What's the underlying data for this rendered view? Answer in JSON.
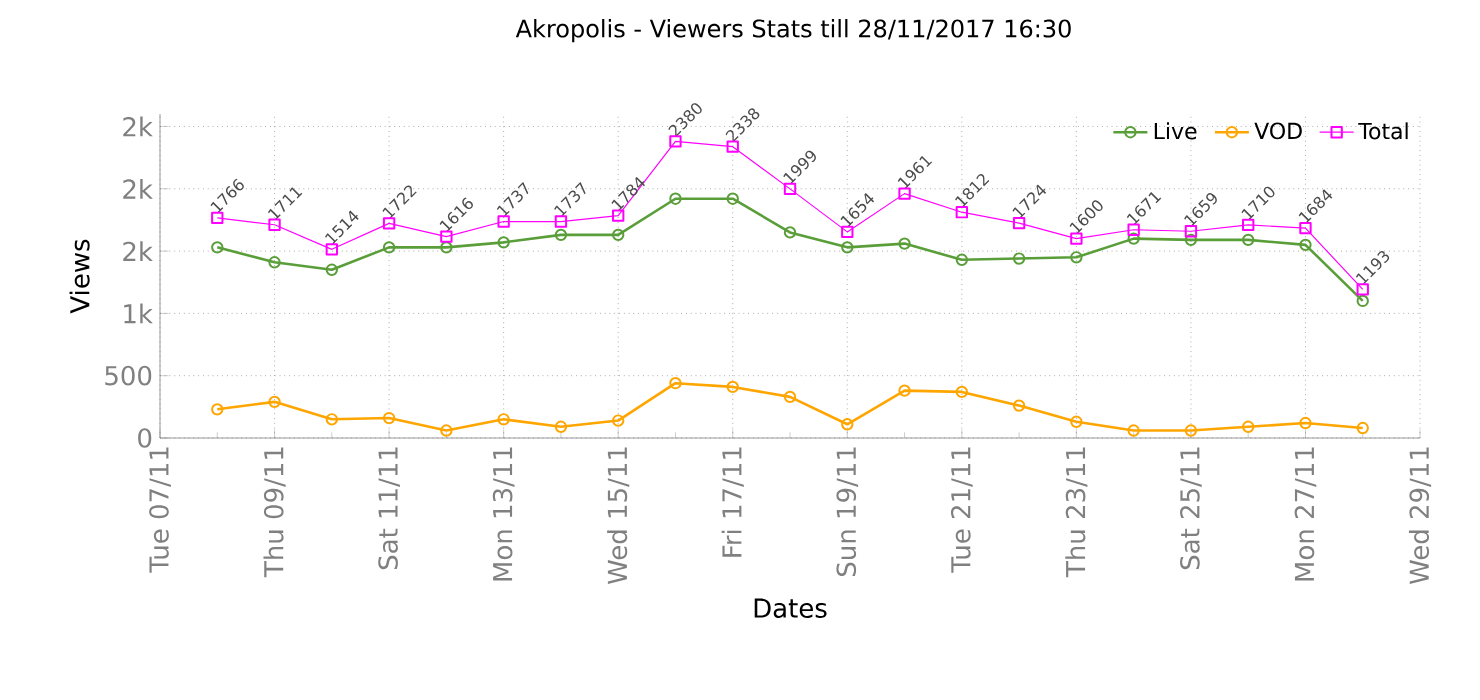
{
  "chart_data": {
    "type": "line",
    "title": "Akropolis - Viewers Stats till 28/11/2017 16:30",
    "xlabel": "Dates",
    "ylabel": "Views",
    "x": [
      "2017-11-08",
      "2017-11-09",
      "2017-11-10",
      "2017-11-11",
      "2017-11-12",
      "2017-11-13",
      "2017-11-14",
      "2017-11-15",
      "2017-11-16",
      "2017-11-17",
      "2017-11-18",
      "2017-11-19",
      "2017-11-20",
      "2017-11-21",
      "2017-11-22",
      "2017-11-23",
      "2017-11-24",
      "2017-11-25",
      "2017-11-26",
      "2017-11-27",
      "2017-11-28"
    ],
    "series": [
      {
        "name": "Live",
        "color": "#5a9e3a",
        "marker": "circle",
        "values": [
          1530,
          1410,
          1350,
          1530,
          1530,
          1570,
          1630,
          1630,
          1920,
          1920,
          1650,
          1530,
          1560,
          1430,
          1440,
          1450,
          1600,
          1590,
          1590,
          1550,
          1100
        ]
      },
      {
        "name": "VOD",
        "color": "#ffa500",
        "marker": "circle",
        "values": [
          230,
          290,
          150,
          160,
          60,
          150,
          90,
          140,
          440,
          410,
          330,
          110,
          380,
          370,
          260,
          130,
          60,
          60,
          90,
          120,
          80
        ]
      },
      {
        "name": "Total",
        "color": "#ff00ff",
        "marker": "square",
        "values": [
          1766,
          1711,
          1514,
          1722,
          1616,
          1737,
          1737,
          1784,
          2380,
          2338,
          1999,
          1654,
          1961,
          1812,
          1724,
          1600,
          1671,
          1659,
          1710,
          1684,
          1193
        ],
        "value_labels": [
          "1766",
          "1711",
          "1514",
          "1722",
          "1616",
          "1737",
          "1737",
          "1784",
          "2380",
          "2338",
          "1999",
          "1654",
          "1961",
          "1812",
          "1724",
          "1600",
          "1671",
          "1659",
          "1710",
          "1684",
          "1193"
        ]
      }
    ],
    "xlim": [
      "2017-11-07",
      "2017-11-29"
    ],
    "xticks": [
      {
        "value": "2017-11-07",
        "label": "Tue 07/11"
      },
      {
        "value": "2017-11-09",
        "label": "Thu 09/11"
      },
      {
        "value": "2017-11-11",
        "label": "Sat 11/11"
      },
      {
        "value": "2017-11-13",
        "label": "Mon 13/11"
      },
      {
        "value": "2017-11-15",
        "label": "Wed 15/11"
      },
      {
        "value": "2017-11-17",
        "label": "Fri 17/11"
      },
      {
        "value": "2017-11-19",
        "label": "Sun 19/11"
      },
      {
        "value": "2017-11-21",
        "label": "Tue 21/11"
      },
      {
        "value": "2017-11-23",
        "label": "Thu 23/11"
      },
      {
        "value": "2017-11-25",
        "label": "Sat 25/11"
      },
      {
        "value": "2017-11-27",
        "label": "Mon 27/11"
      },
      {
        "value": "2017-11-29",
        "label": "Wed 29/11"
      }
    ],
    "ylim": [
      0,
      2600
    ],
    "yticks": [
      0,
      500,
      {
        "value": 1000,
        "label": "1k"
      },
      {
        "value": 1500,
        "label": "2k"
      },
      {
        "value": 2000,
        "label": "2k"
      },
      {
        "value": 2500,
        "label": "2k"
      }
    ],
    "grid": true,
    "legend": "top right",
    "line_style": "solid"
  }
}
